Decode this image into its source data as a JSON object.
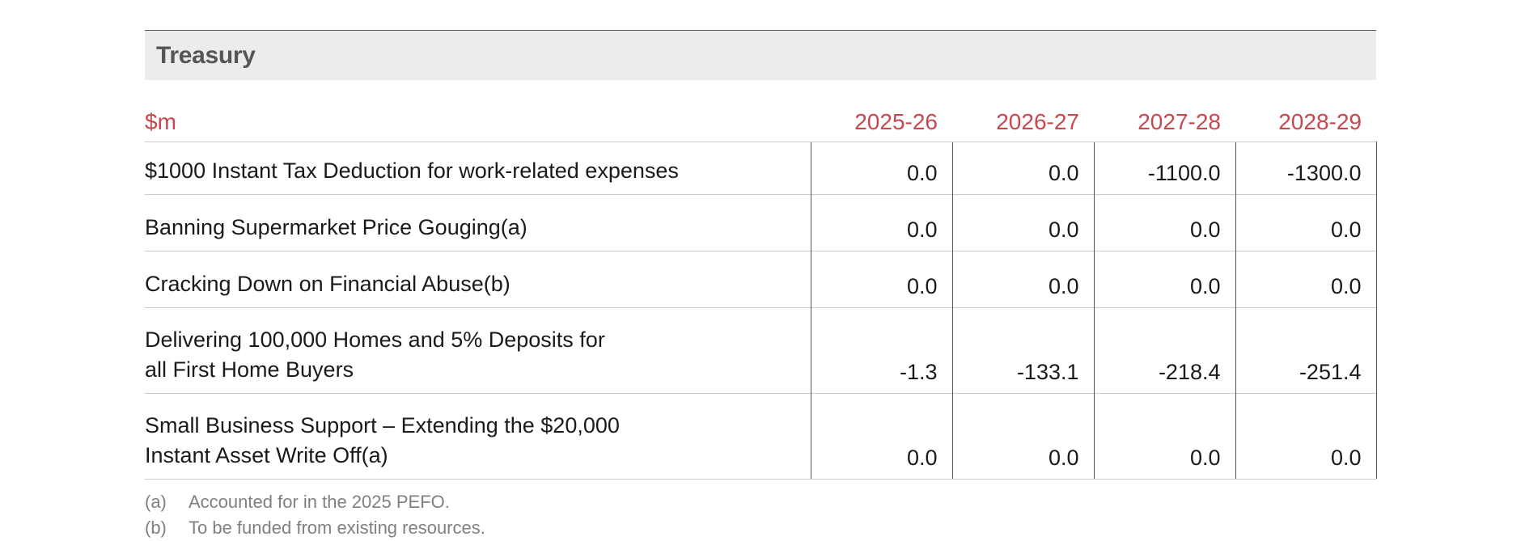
{
  "section": {
    "title": "Treasury"
  },
  "table": {
    "unit_label": "$m",
    "years": [
      "2025-26",
      "2026-27",
      "2027-28",
      "2028-29"
    ],
    "rows": [
      {
        "label_lines": [
          "$1000 Instant Tax Deduction for work-related expenses"
        ],
        "values": [
          "0.0",
          "0.0",
          "-1100.0",
          "-1300.0"
        ]
      },
      {
        "label_lines": [
          "Banning Supermarket Price Gouging(a)"
        ],
        "values": [
          "0.0",
          "0.0",
          "0.0",
          "0.0"
        ]
      },
      {
        "label_lines": [
          "Cracking Down on Financial Abuse(b)"
        ],
        "values": [
          "0.0",
          "0.0",
          "0.0",
          "0.0"
        ]
      },
      {
        "label_lines": [
          "Delivering 100,000 Homes and 5% Deposits for",
          "all First Home Buyers"
        ],
        "values": [
          "-1.3",
          "-133.1",
          "-218.4",
          "-251.4"
        ]
      },
      {
        "label_lines": [
          "Small Business Support – Extending the $20,000",
          "Instant Asset Write Off(a)"
        ],
        "values": [
          "0.0",
          "0.0",
          "0.0",
          "0.0"
        ]
      }
    ]
  },
  "notes": [
    {
      "mark": "(a)",
      "text": "Accounted for in the 2025 PEFO."
    },
    {
      "mark": "(b)",
      "text": "To be funded from existing resources."
    }
  ],
  "colors": {
    "header_accent": "#c8474f",
    "section_background": "#ececec",
    "section_title": "#555555",
    "notes_text": "#808080"
  }
}
